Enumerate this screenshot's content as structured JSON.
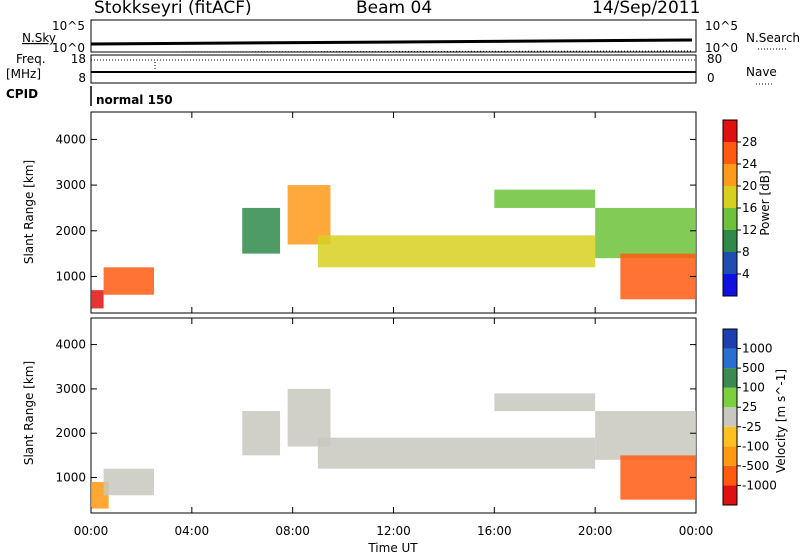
{
  "header": {
    "station": "Stokkseyri (fitACF)",
    "beam": "Beam 04",
    "date": "14/Sep/2011"
  },
  "top_panels": {
    "nsky_label": "N.Sky",
    "nsearch_label": "N.Search",
    "nsky_ticks": [
      "10^5",
      "10^0"
    ],
    "nsearch_ticks": [
      "10^5",
      "10^0"
    ],
    "freq_label_1": "Freq.",
    "freq_label_2": "[MHz]",
    "freq_ticks": [
      "18",
      "8"
    ],
    "nave_label": "Nave",
    "nave_ticks": [
      "80",
      "0"
    ],
    "cpid_label": "CPID",
    "cpid_value": "normal 150"
  },
  "colors": {
    "power": [
      "#1010e0",
      "#1e4fb0",
      "#2f8a4a",
      "#6cc23a",
      "#d8d020",
      "#ff9a1a",
      "#ff5a10",
      "#e01010"
    ],
    "velocity": [
      "#1f3fb0",
      "#2a6fd0",
      "#3a8a50",
      "#7cd040",
      "#c8c8c0",
      "#ffc020",
      "#ff9a10",
      "#ff5a10",
      "#e01010"
    ],
    "gray": "#c8c8c0"
  },
  "chart_data": [
    {
      "type": "heatmap",
      "name": "Power",
      "ylabel": "Slant Range [km]",
      "yticks": [
        "1000",
        "2000",
        "3000",
        "4000"
      ],
      "ylim": [
        200,
        4600
      ],
      "colorbar_label": "Power [dB]",
      "colorbar_ticks": [
        "4",
        "8",
        "12",
        "16",
        "20",
        "24",
        "28"
      ],
      "bands": [
        {
          "x": [
            0.0,
            0.5
          ],
          "y": [
            300,
            700
          ],
          "level": 7
        },
        {
          "x": [
            0.5,
            2.5
          ],
          "y": [
            600,
            1200
          ],
          "level": 6
        },
        {
          "x": [
            6.0,
            7.5
          ],
          "y": [
            1500,
            2500
          ],
          "level": 2
        },
        {
          "x": [
            7.8,
            9.5
          ],
          "y": [
            1700,
            3000
          ],
          "level": 5
        },
        {
          "x": [
            9.0,
            20.0
          ],
          "y": [
            1200,
            1900
          ],
          "level": 4
        },
        {
          "x": [
            16.0,
            20.0
          ],
          "y": [
            2500,
            2900
          ],
          "level": 3
        },
        {
          "x": [
            20.0,
            24.0
          ],
          "y": [
            1400,
            2500
          ],
          "level": 3
        },
        {
          "x": [
            21.0,
            24.0
          ],
          "y": [
            500,
            1500
          ],
          "level": 6
        }
      ]
    },
    {
      "type": "heatmap",
      "name": "Velocity",
      "xlabel": "Time UT",
      "xticks": [
        "00:00",
        "04:00",
        "08:00",
        "12:00",
        "16:00",
        "20:00",
        "00:00"
      ],
      "ylabel": "Slant Range [km]",
      "yticks": [
        "1000",
        "2000",
        "3000",
        "4000"
      ],
      "ylim": [
        200,
        4600
      ],
      "colorbar_label": "Velocity [m s^-1]",
      "colorbar_ticks": [
        "1000",
        "500",
        "100",
        "25",
        "-25",
        "-100",
        "-500",
        "-1000"
      ],
      "bands": [
        {
          "x": [
            0.0,
            0.7
          ],
          "y": [
            300,
            900
          ],
          "level": 6
        },
        {
          "x": [
            0.5,
            2.5
          ],
          "y": [
            600,
            1200
          ],
          "level": 4
        },
        {
          "x": [
            6.0,
            7.5
          ],
          "y": [
            1500,
            2500
          ],
          "level": 4
        },
        {
          "x": [
            7.8,
            9.5
          ],
          "y": [
            1700,
            3000
          ],
          "level": 4
        },
        {
          "x": [
            9.0,
            20.0
          ],
          "y": [
            1200,
            1900
          ],
          "level": 4
        },
        {
          "x": [
            16.0,
            20.0
          ],
          "y": [
            2500,
            2900
          ],
          "level": 4
        },
        {
          "x": [
            20.0,
            24.0
          ],
          "y": [
            1400,
            2500
          ],
          "level": 4
        },
        {
          "x": [
            21.0,
            24.0
          ],
          "y": [
            500,
            1500
          ],
          "level": 7
        }
      ]
    }
  ]
}
